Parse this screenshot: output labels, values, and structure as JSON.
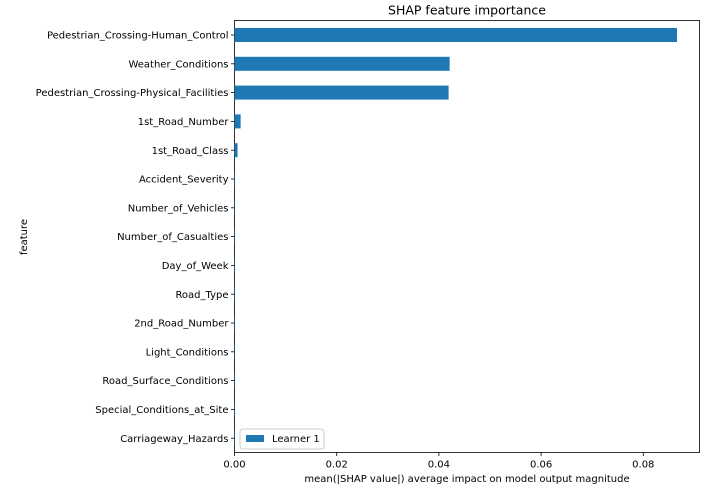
{
  "chart_data": {
    "type": "bar",
    "orientation": "horizontal",
    "title": "SHAP feature importance",
    "xlabel": "mean(|SHAP value|) average impact on model output magnitude",
    "ylabel": "feature",
    "xlim": [
      0,
      0.091
    ],
    "xticks": [
      0.0,
      0.02,
      0.04,
      0.06,
      0.08
    ],
    "xtick_labels": [
      "0.00",
      "0.02",
      "0.04",
      "0.06",
      "0.08"
    ],
    "grid": false,
    "legend_position": "lower-left",
    "bar_color": "#1f77b4",
    "categories": [
      "Pedestrian_Crossing-Human_Control",
      "Weather_Conditions",
      "Pedestrian_Crossing-Physical_Facilities",
      "1st_Road_Number",
      "1st_Road_Class",
      "Accident_Severity",
      "Number_of_Vehicles",
      "Number_of_Casualties",
      "Day_of_Week",
      "Road_Type",
      "2nd_Road_Number",
      "Light_Conditions",
      "Road_Surface_Conditions",
      "Special_Conditions_at_Site",
      "Carriageway_Hazards"
    ],
    "series": [
      {
        "name": "Learner 1",
        "values": [
          0.0866,
          0.0421,
          0.0419,
          0.0012,
          0.0006,
          0.0001,
          0.0001,
          0.0001,
          0.0001,
          0.0001,
          0.0001,
          0.0001,
          0.0001,
          0.0001,
          0.0001
        ]
      }
    ]
  }
}
